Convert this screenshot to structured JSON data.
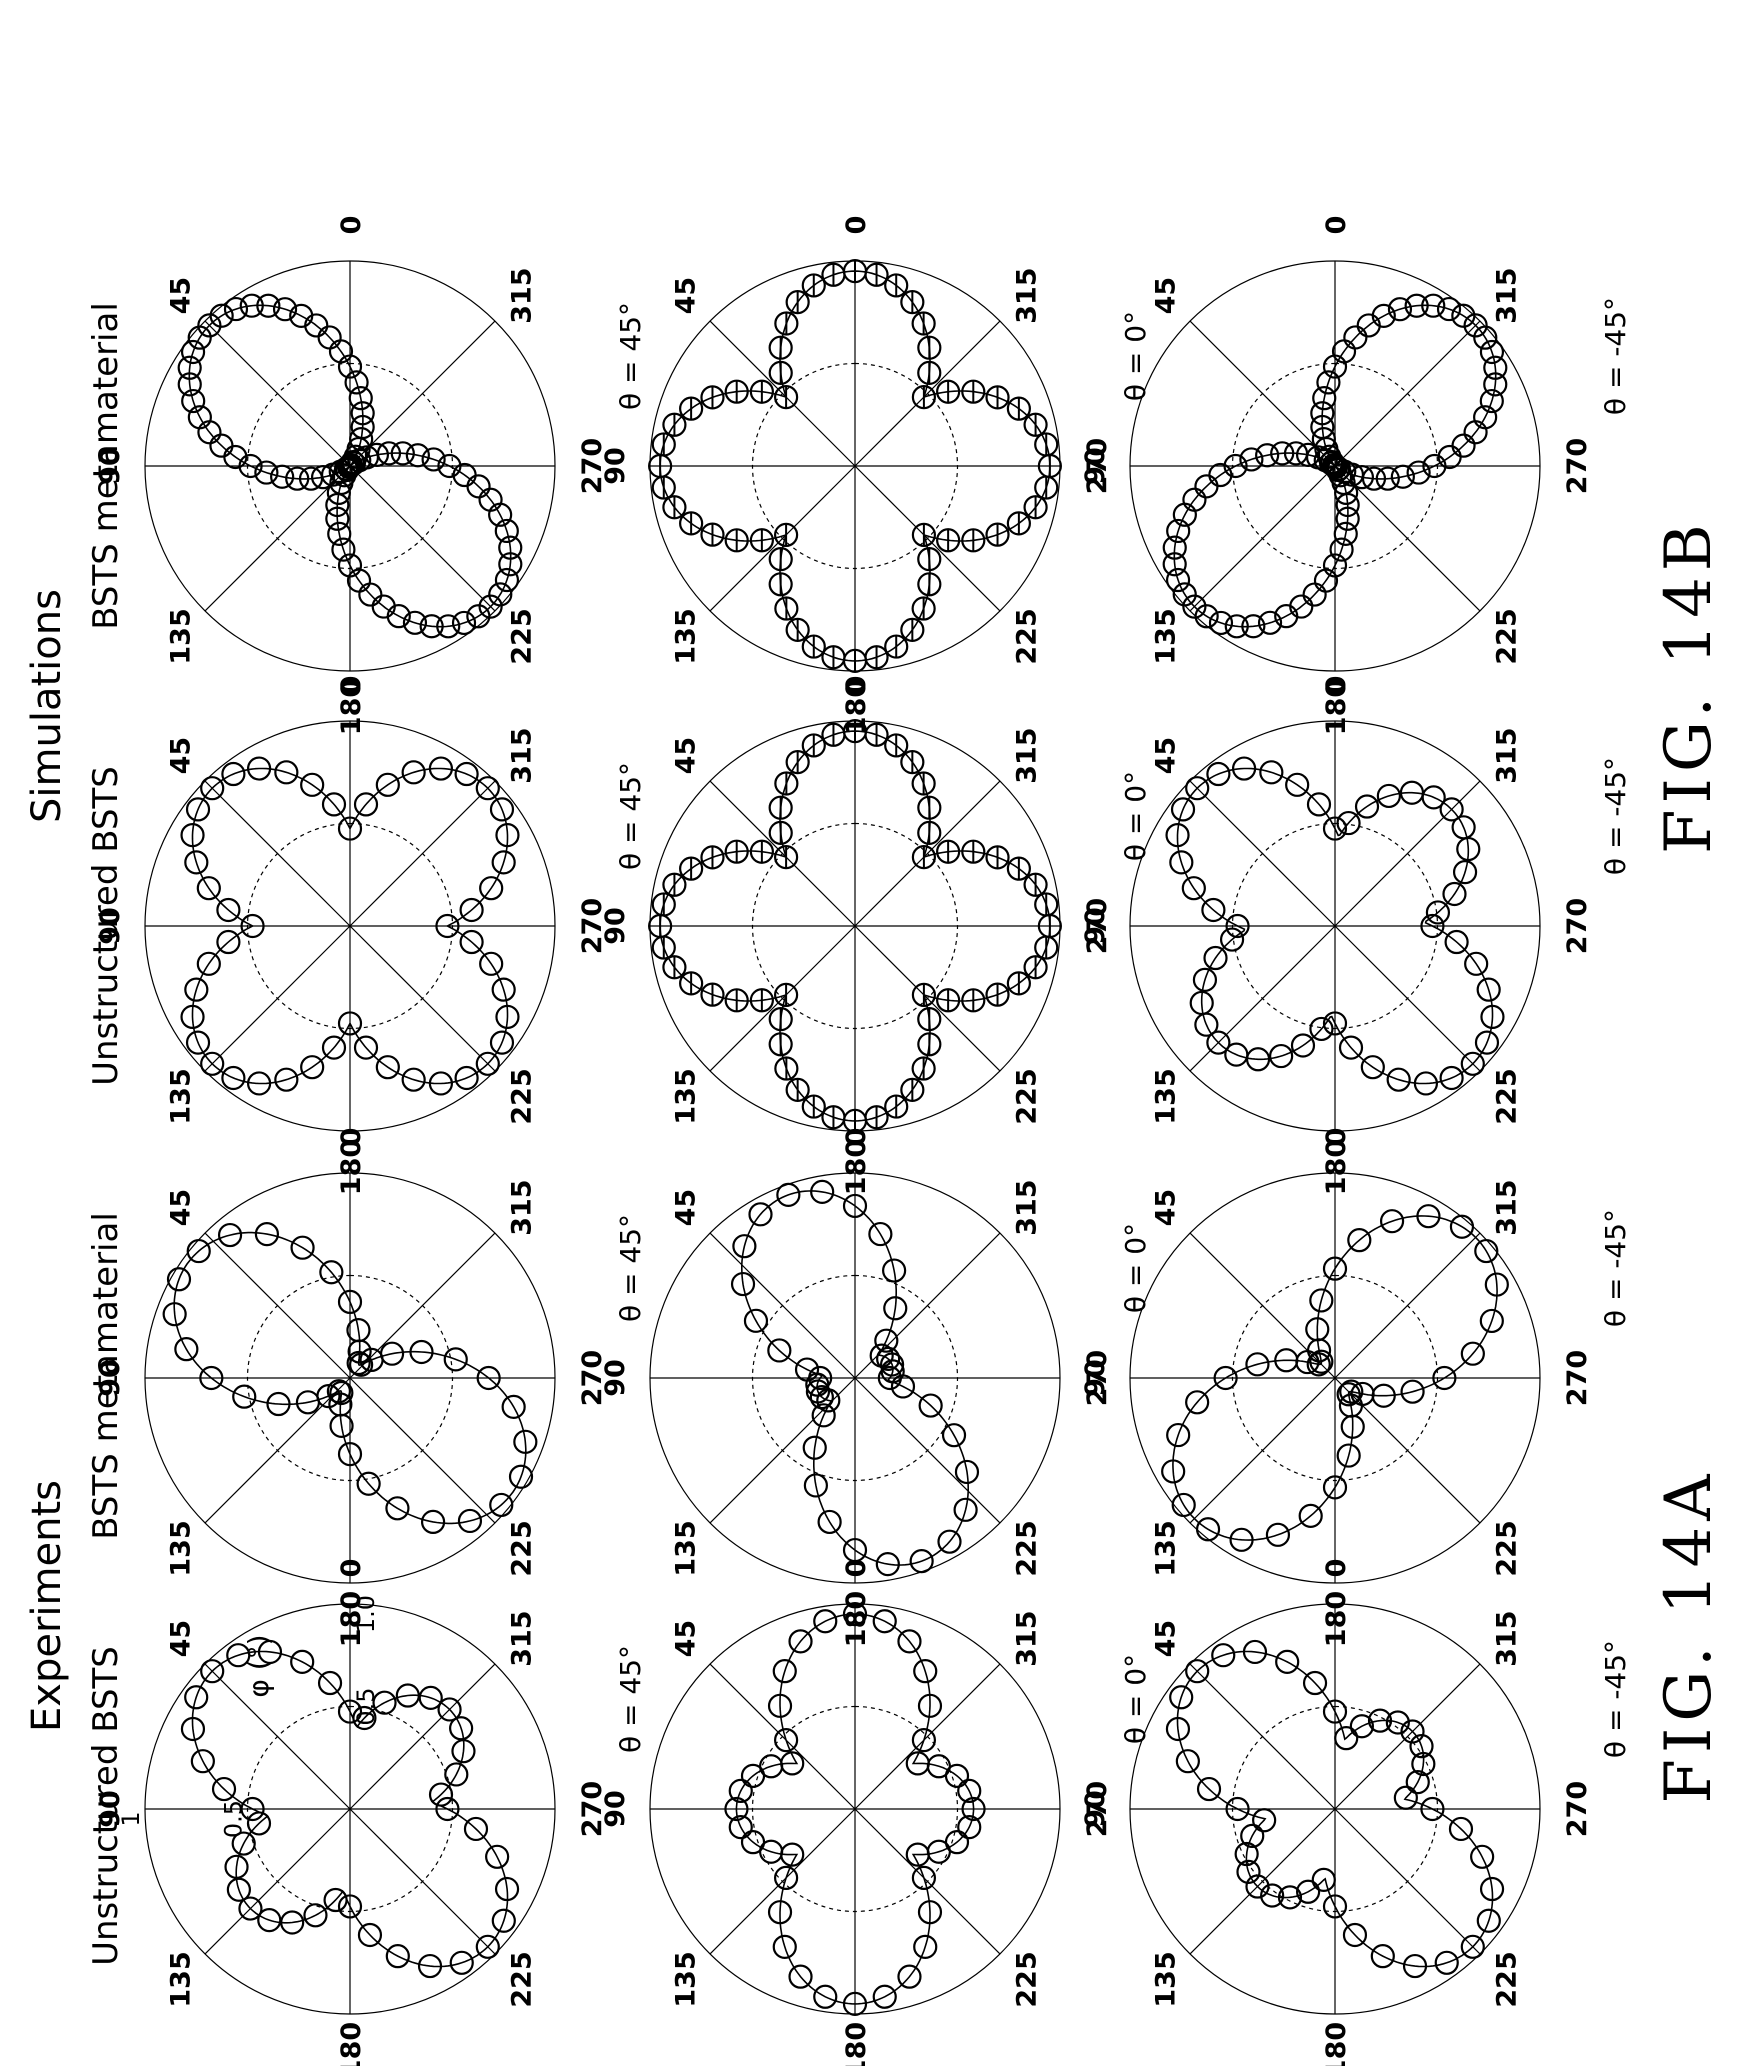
{
  "figure": {
    "sections": [
      {
        "title": "Experiments",
        "label": "FIG. 14A"
      },
      {
        "title": "Simulations",
        "label": "FIG. 14B"
      }
    ],
    "columns": [
      "Unstructured BSTS",
      "BSTS metamaterial",
      "Unstructured BSTS",
      "BSTS metamaterial"
    ],
    "phi_label": "φ (°)"
  },
  "chart_data": [
    {
      "type": "polar",
      "id": "exp-unstructured-theta45",
      "section": "Experiments",
      "column": "Unstructured BSTS",
      "theta_label": "θ = 45°",
      "angle_ticks": [
        "0",
        "45",
        "90",
        "135",
        "180",
        "225",
        "270",
        "315"
      ],
      "radial_ticks": [
        "0.5",
        "1",
        "0.5",
        "1.0"
      ],
      "rlim": [
        0,
        1
      ],
      "model": {
        "kind": "four-lobe",
        "orientation_deg": 45,
        "minor_ratio": 0.85
      },
      "marker_style": "circle",
      "points_per_period": 20
    },
    {
      "type": "polar",
      "id": "exp-metamaterial-theta45",
      "section": "Experiments",
      "column": "BSTS metamaterial",
      "theta_label": "θ = 45°",
      "angle_ticks": [
        "0",
        "45",
        "90",
        "135",
        "180",
        "225",
        "270",
        "315"
      ],
      "rlim": [
        0,
        1
      ],
      "model": {
        "kind": "two-lobe",
        "orientation_deg": 55,
        "minor_ratio": 0.08
      },
      "marker_style": "circle",
      "points_per_period": 18
    },
    {
      "type": "polar",
      "id": "exp-unstructured-theta0",
      "section": "Experiments",
      "column": "Unstructured BSTS",
      "theta_label": "θ = 0°",
      "angle_ticks": [
        "0",
        "45",
        "90",
        "135",
        "180",
        "225",
        "270",
        "315"
      ],
      "rlim": [
        0,
        1
      ],
      "model": {
        "kind": "four-lobe",
        "orientation_deg": 0,
        "minor_ratio": 0.78
      },
      "marker_style": "circle",
      "points_per_period": 20
    },
    {
      "type": "polar",
      "id": "exp-metamaterial-theta0",
      "section": "Experiments",
      "column": "BSTS metamaterial",
      "theta_label": "θ = 0°",
      "angle_ticks": [
        "0",
        "45",
        "90",
        "135",
        "180",
        "225",
        "270",
        "315"
      ],
      "rlim": [
        0,
        1
      ],
      "model": {
        "kind": "four-lobe",
        "orientation_deg": 20,
        "minor_ratio": 0.45
      },
      "marker_style": "circle",
      "points_per_period": 18
    },
    {
      "type": "polar",
      "id": "exp-unstructured-theta-45",
      "section": "Experiments",
      "column": "Unstructured BSTS",
      "theta_label": "θ = -45°",
      "angle_ticks": [
        "0",
        "45",
        "90",
        "135",
        "180",
        "225",
        "270",
        "315"
      ],
      "rlim": [
        0,
        1
      ],
      "model": {
        "kind": "four-lobe",
        "orientation_deg": 45,
        "minor_ratio": 0.75
      },
      "marker_style": "circle",
      "points_per_period": 20
    },
    {
      "type": "polar",
      "id": "exp-metamaterial-theta-45",
      "section": "Experiments",
      "column": "BSTS metamaterial",
      "theta_label": "θ = -45°",
      "angle_ticks": [
        "0",
        "45",
        "90",
        "135",
        "180",
        "225",
        "270",
        "315"
      ],
      "rlim": [
        0,
        1
      ],
      "model": {
        "kind": "two-lobe",
        "orientation_deg": 135,
        "minor_ratio": 0.1
      },
      "marker_style": "circle",
      "points_per_period": 18
    },
    {
      "type": "polar",
      "id": "sim-unstructured-theta45",
      "section": "Simulations",
      "column": "Unstructured BSTS",
      "theta_label": "θ = 45°",
      "angle_ticks": [
        "0",
        "45",
        "90",
        "135",
        "180",
        "225",
        "270",
        "315"
      ],
      "rlim": [
        0,
        1
      ],
      "model": {
        "kind": "four-lobe",
        "orientation_deg": 45,
        "minor_ratio": 1.0
      },
      "marker_style": "circle",
      "points_per_period": 24
    },
    {
      "type": "polar",
      "id": "sim-metamaterial-theta45",
      "section": "Simulations",
      "column": "BSTS metamaterial",
      "theta_label": "θ = 45°",
      "angle_ticks": [
        "0",
        "45",
        "90",
        "135",
        "180",
        "225",
        "270",
        "315"
      ],
      "rlim": [
        0,
        1
      ],
      "model": {
        "kind": "two-lobe",
        "orientation_deg": 45,
        "minor_ratio": 0.0
      },
      "marker_style": "circle",
      "points_per_period": 40
    },
    {
      "type": "polar",
      "id": "sim-unstructured-theta0",
      "section": "Simulations",
      "column": "Unstructured BSTS",
      "theta_label": "θ = 0°",
      "angle_ticks": [
        "0",
        "45",
        "90",
        "135",
        "180",
        "225",
        "270",
        "315"
      ],
      "rlim": [
        0,
        1
      ],
      "model": {
        "kind": "four-lobe",
        "orientation_deg": 0,
        "minor_ratio": 1.0
      },
      "marker_style": "theta-circle",
      "points_per_period": 28
    },
    {
      "type": "polar",
      "id": "sim-metamaterial-theta0",
      "section": "Simulations",
      "column": "BSTS metamaterial",
      "theta_label": "θ = 0°",
      "angle_ticks": [
        "0",
        "45",
        "90",
        "135",
        "180",
        "225",
        "270",
        "315"
      ],
      "rlim": [
        0,
        1
      ],
      "model": {
        "kind": "four-lobe",
        "orientation_deg": 0,
        "minor_ratio": 1.0
      },
      "marker_style": "theta-circle",
      "points_per_period": 28
    },
    {
      "type": "polar",
      "id": "sim-unstructured-theta-45",
      "section": "Simulations",
      "column": "Unstructured BSTS",
      "theta_label": "θ = -45°",
      "angle_ticks": [
        "0",
        "45",
        "90",
        "135",
        "180",
        "225",
        "270",
        "315"
      ],
      "rlim": [
        0,
        1
      ],
      "model": {
        "kind": "four-lobe",
        "orientation_deg": 45,
        "minor_ratio": 0.92
      },
      "marker_style": "circle",
      "points_per_period": 24
    },
    {
      "type": "polar",
      "id": "sim-metamaterial-theta-45",
      "section": "Simulations",
      "column": "BSTS metamaterial",
      "theta_label": "θ = -45°",
      "angle_ticks": [
        "0",
        "45",
        "90",
        "135",
        "180",
        "225",
        "270",
        "315"
      ],
      "rlim": [
        0,
        1
      ],
      "model": {
        "kind": "two-lobe",
        "orientation_deg": 135,
        "minor_ratio": 0.0
      },
      "marker_style": "circle",
      "points_per_period": 40
    }
  ]
}
